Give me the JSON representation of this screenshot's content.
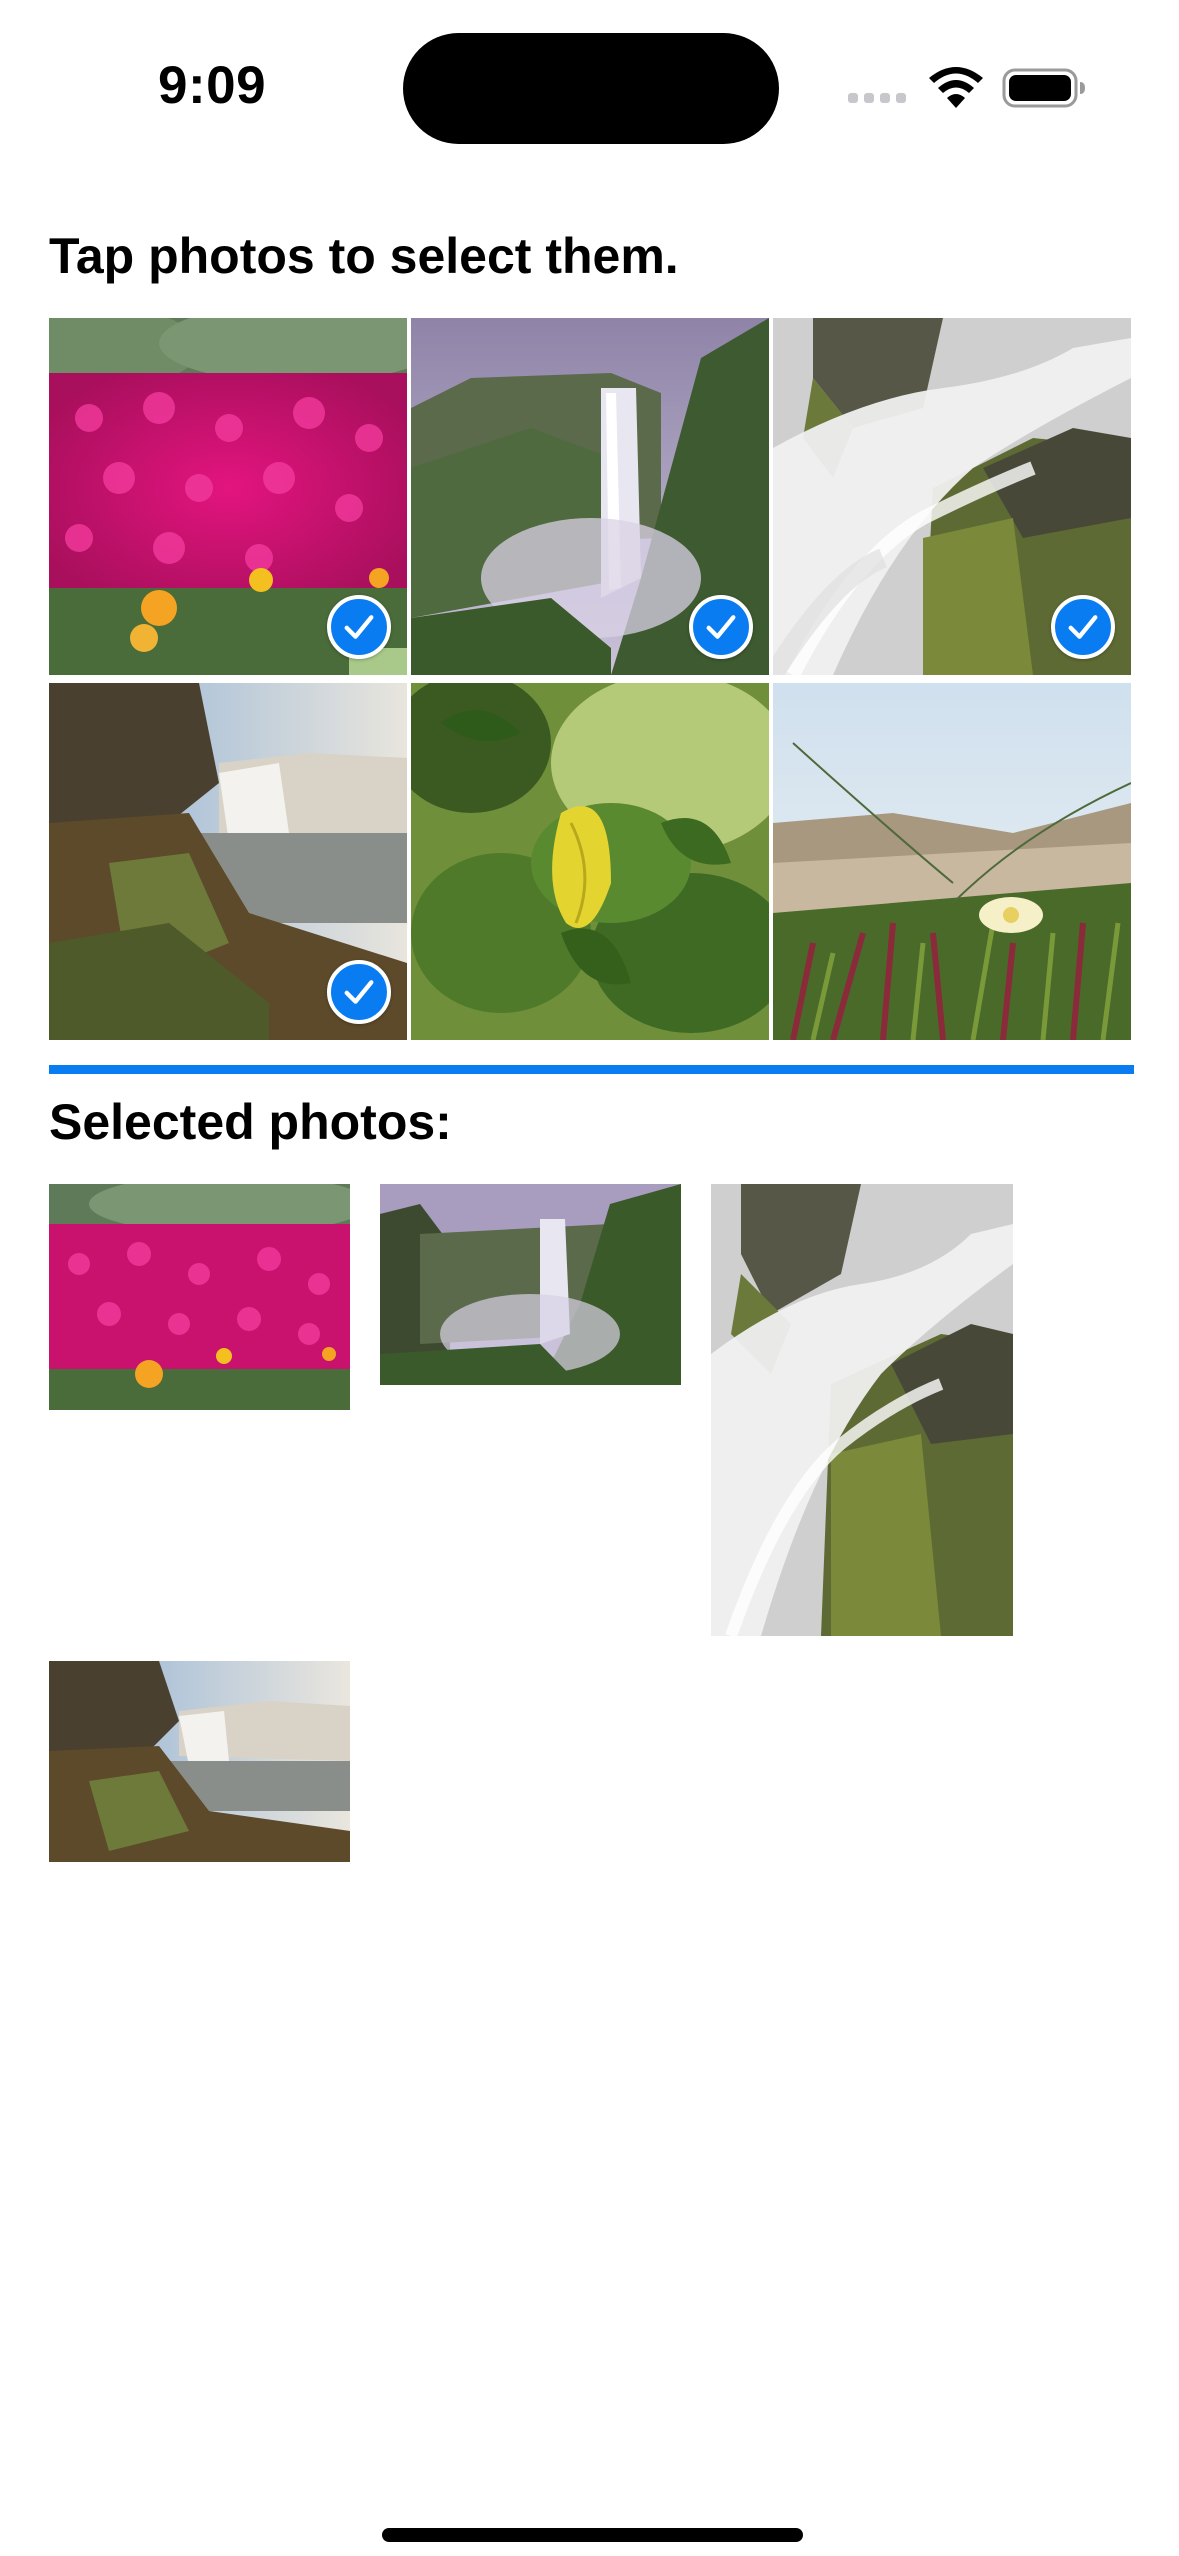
{
  "status_bar": {
    "time": "9:09",
    "icons": [
      "cellular-signal-icon",
      "wifi-icon",
      "battery-icon"
    ]
  },
  "title": "Tap photos to select them.",
  "selected_title": "Selected photos:",
  "accent_color": "#0a7cf2",
  "grid_photos": [
    {
      "subject": "pink flowers",
      "selected": true
    },
    {
      "subject": "waterfall in green valley",
      "selected": true
    },
    {
      "subject": "waterfall over mossy rocks",
      "selected": true
    },
    {
      "subject": "waterfall on cliff coast",
      "selected": true
    },
    {
      "subject": "green leaves with yellow leaf",
      "selected": false
    },
    {
      "subject": "beach grass with white flower",
      "selected": false
    }
  ],
  "selected_photos": [
    {
      "subject": "pink flowers"
    },
    {
      "subject": "waterfall in green valley"
    },
    {
      "subject": "waterfall over mossy rocks"
    },
    {
      "subject": "waterfall on cliff coast"
    }
  ]
}
